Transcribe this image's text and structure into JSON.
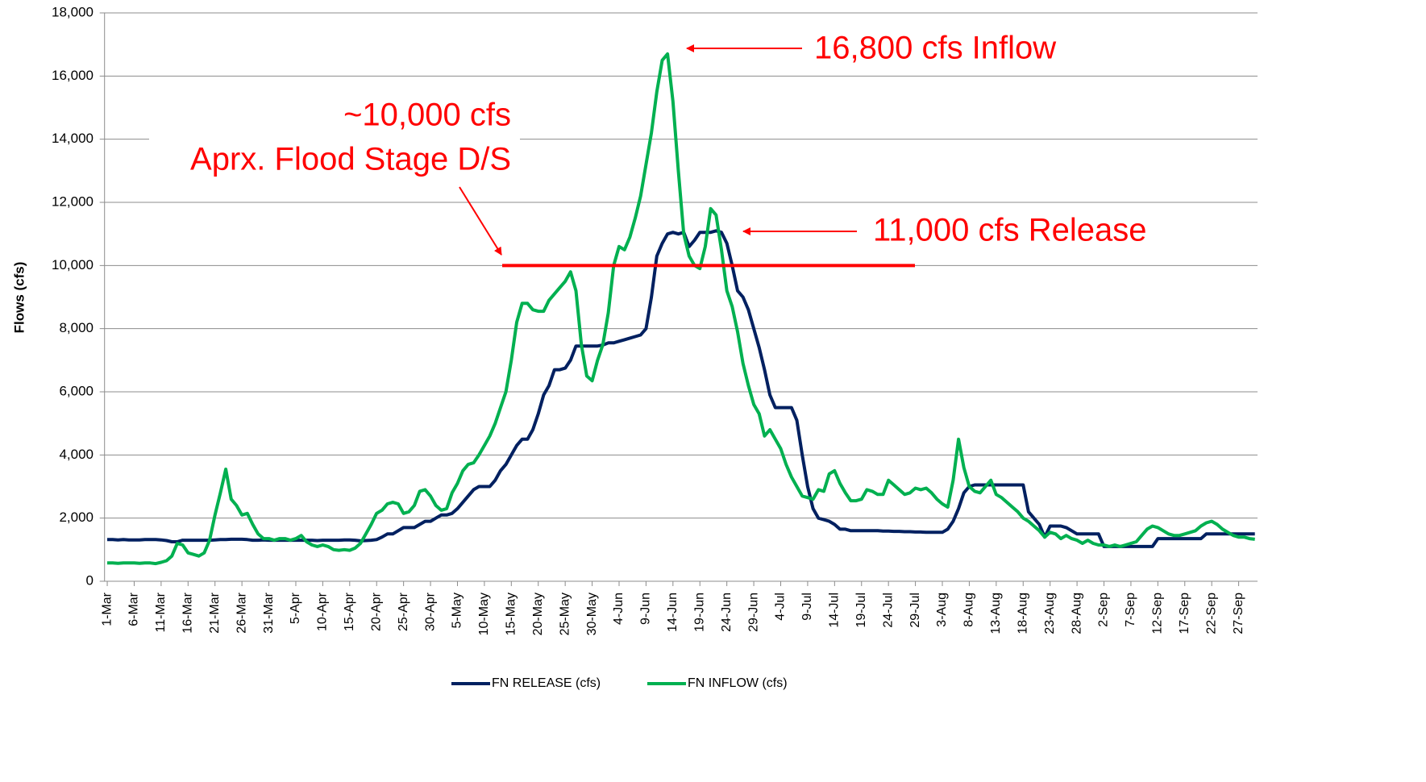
{
  "chart_data": {
    "type": "line",
    "y_label": "Flows (cfs)",
    "categories": [
      "1-Mar",
      null,
      null,
      null,
      null,
      "6-Mar",
      null,
      null,
      null,
      null,
      "11-Mar",
      null,
      null,
      null,
      null,
      "16-Mar",
      null,
      null,
      null,
      null,
      "21-Mar",
      null,
      null,
      null,
      null,
      "26-Mar",
      null,
      null,
      null,
      null,
      "31-Mar",
      null,
      null,
      null,
      null,
      "5-Apr",
      null,
      null,
      null,
      null,
      "10-Apr",
      null,
      null,
      null,
      null,
      "15-Apr",
      null,
      null,
      null,
      null,
      "20-Apr",
      null,
      null,
      null,
      null,
      "25-Apr",
      null,
      null,
      null,
      null,
      "30-Apr",
      null,
      null,
      null,
      null,
      "5-May",
      null,
      null,
      null,
      null,
      "10-May",
      null,
      null,
      null,
      null,
      "15-May",
      null,
      null,
      null,
      null,
      "20-May",
      null,
      null,
      null,
      null,
      "25-May",
      null,
      null,
      null,
      null,
      "30-May",
      null,
      null,
      null,
      null,
      "4-Jun",
      null,
      null,
      null,
      null,
      "9-Jun",
      null,
      null,
      null,
      null,
      "14-Jun",
      null,
      null,
      null,
      null,
      "19-Jun",
      null,
      null,
      null,
      null,
      "24-Jun",
      null,
      null,
      null,
      null,
      "29-Jun",
      null,
      null,
      null,
      null,
      "4-Jul",
      null,
      null,
      null,
      null,
      "9-Jul",
      null,
      null,
      null,
      null,
      "14-Jul",
      null,
      null,
      null,
      null,
      "19-Jul",
      null,
      null,
      null,
      null,
      "24-Jul",
      null,
      null,
      null,
      null,
      "29-Jul",
      null,
      null,
      null,
      null,
      "3-Aug",
      null,
      null,
      null,
      null,
      "8-Aug",
      null,
      null,
      null,
      null,
      "13-Aug",
      null,
      null,
      null,
      null,
      "18-Aug",
      null,
      null,
      null,
      null,
      "23-Aug",
      null,
      null,
      null,
      null,
      "28-Aug",
      null,
      null,
      null,
      null,
      "2-Sep",
      null,
      null,
      null,
      null,
      "7-Sep",
      null,
      null,
      null,
      null,
      "12-Sep",
      null,
      null,
      null,
      null,
      "17-Sep",
      null,
      null,
      null,
      null,
      "22-Sep",
      null,
      null,
      null,
      null,
      "27-Sep",
      null,
      null,
      null
    ],
    "series": [
      {
        "name": "FN RELEASE (cfs)",
        "color": "#002060",
        "values": [
          1320,
          1320,
          1310,
          1320,
          1310,
          1310,
          1310,
          1320,
          1320,
          1320,
          1310,
          1290,
          1250,
          1250,
          1300,
          1300,
          1300,
          1300,
          1300,
          1300,
          1310,
          1320,
          1320,
          1330,
          1330,
          1330,
          1320,
          1300,
          1300,
          1310,
          1300,
          1300,
          1300,
          1300,
          1300,
          1300,
          1300,
          1300,
          1300,
          1290,
          1300,
          1300,
          1300,
          1300,
          1310,
          1310,
          1300,
          1280,
          1290,
          1300,
          1320,
          1400,
          1500,
          1500,
          1600,
          1700,
          1700,
          1700,
          1800,
          1900,
          1900,
          2000,
          2100,
          2100,
          2150,
          2300,
          2500,
          2700,
          2900,
          3000,
          3000,
          3000,
          3200,
          3500,
          3700,
          4000,
          4300,
          4500,
          4500,
          4800,
          5300,
          5900,
          6200,
          6700,
          6700,
          6750,
          7000,
          7450,
          7450,
          7450,
          7450,
          7450,
          7480,
          7550,
          7550,
          7600,
          7650,
          7700,
          7750,
          7800,
          8000,
          9000,
          10300,
          10700,
          11000,
          11050,
          11000,
          11050,
          10600,
          10800,
          11050,
          11050,
          11050,
          11100,
          11050,
          10700,
          10000,
          9200,
          9000,
          8600,
          8000,
          7400,
          6700,
          5900,
          5500,
          5500,
          5500,
          5500,
          5100,
          4000,
          3000,
          2300,
          2000,
          1950,
          1900,
          1800,
          1650,
          1650,
          1600,
          1600,
          1600,
          1600,
          1600,
          1600,
          1590,
          1590,
          1580,
          1580,
          1570,
          1570,
          1560,
          1560,
          1550,
          1550,
          1550,
          1550,
          1650,
          1900,
          2300,
          2800,
          3000,
          3050,
          3050,
          3050,
          3050,
          3050,
          3050,
          3050,
          3050,
          3050,
          3050,
          2200,
          2000,
          1800,
          1400,
          1750,
          1750,
          1750,
          1700,
          1600,
          1500,
          1500,
          1500,
          1500,
          1500,
          1100,
          1100,
          1100,
          1100,
          1100,
          1100,
          1100,
          1100,
          1100,
          1100,
          1350,
          1350,
          1350,
          1350,
          1350,
          1350,
          1350,
          1350,
          1350,
          1500,
          1500,
          1500,
          1500,
          1500,
          1500,
          1500,
          1500,
          1500,
          1500
        ]
      },
      {
        "name": "FN INFLOW (cfs)",
        "color": "#00b050",
        "values": [
          580,
          580,
          570,
          580,
          580,
          580,
          570,
          580,
          580,
          560,
          600,
          650,
          800,
          1200,
          1150,
          900,
          850,
          800,
          900,
          1300,
          2100,
          2800,
          3550,
          2600,
          2400,
          2100,
          2150,
          1800,
          1500,
          1350,
          1350,
          1300,
          1350,
          1350,
          1300,
          1350,
          1450,
          1250,
          1150,
          1100,
          1150,
          1100,
          1000,
          980,
          1000,
          980,
          1050,
          1200,
          1500,
          1800,
          2150,
          2250,
          2450,
          2500,
          2450,
          2150,
          2200,
          2400,
          2850,
          2900,
          2700,
          2400,
          2250,
          2300,
          2800,
          3100,
          3500,
          3700,
          3750,
          4000,
          4300,
          4600,
          5000,
          5500,
          6000,
          7000,
          8200,
          8800,
          8800,
          8600,
          8550,
          8550,
          8900,
          9100,
          9300,
          9500,
          9800,
          9200,
          7500,
          6500,
          6350,
          7000,
          7500,
          8500,
          10000,
          10600,
          10500,
          10900,
          11500,
          12200,
          13200,
          14200,
          15500,
          16500,
          16700,
          15200,
          13000,
          11000,
          10300,
          10000,
          9900,
          10600,
          11800,
          11600,
          10500,
          9200,
          8700,
          7900,
          6900,
          6200,
          5600,
          5300,
          4600,
          4800,
          4500,
          4200,
          3700,
          3300,
          3000,
          2700,
          2650,
          2600,
          2900,
          2850,
          3400,
          3500,
          3100,
          2800,
          2550,
          2550,
          2600,
          2900,
          2850,
          2750,
          2750,
          3200,
          3050,
          2900,
          2750,
          2800,
          2950,
          2900,
          2950,
          2800,
          2600,
          2450,
          2350,
          3200,
          4500,
          3600,
          3000,
          2850,
          2800,
          3000,
          3200,
          2750,
          2650,
          2500,
          2350,
          2200,
          2000,
          1900,
          1750,
          1600,
          1400,
          1550,
          1500,
          1350,
          1450,
          1350,
          1300,
          1200,
          1300,
          1200,
          1150,
          1150,
          1100,
          1150,
          1100,
          1150,
          1200,
          1250,
          1450,
          1650,
          1750,
          1700,
          1600,
          1500,
          1450,
          1450,
          1500,
          1550,
          1600,
          1750,
          1850,
          1900,
          1800,
          1650,
          1550,
          1450,
          1400,
          1400,
          1350,
          1330
        ]
      }
    ],
    "ylim": [
      0,
      18000
    ],
    "yticks": [
      0,
      {
        "value": 2000,
        "label": "2,000"
      },
      {
        "value": 4000,
        "label": "4,000"
      },
      {
        "value": 6000,
        "label": "6,000"
      },
      {
        "value": 8000,
        "label": "8,000"
      },
      {
        "value": 10000,
        "label": "10,000"
      },
      {
        "value": 12000,
        "label": "12,000"
      },
      {
        "value": 14000,
        "label": "14,000"
      },
      {
        "value": 16000,
        "label": "16,000"
      },
      {
        "value": 18000,
        "label": "18,000"
      }
    ],
    "grid": true,
    "legend": "bottom",
    "reference_line": {
      "value": 10000,
      "color": "#ff0000"
    },
    "annotations": [
      "16,800 cfs Inflow",
      "~10,000 cfs",
      "Aprx. Flood Stage D/S",
      "11,000 cfs Release"
    ]
  }
}
